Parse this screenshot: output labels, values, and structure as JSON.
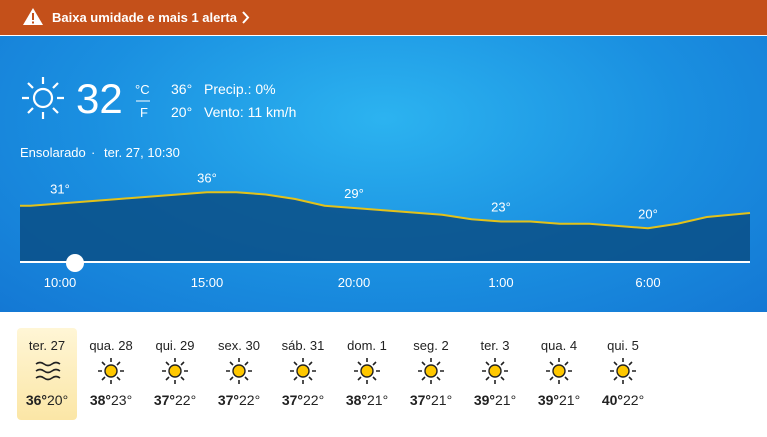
{
  "alert": {
    "text": "Baixa umidade e mais 1 alerta"
  },
  "current": {
    "temperature": "32",
    "unit_c": "°C",
    "unit_f": "F",
    "high": "36°",
    "low": "20°",
    "precip": "Precip.: 0%",
    "wind": "Vento: 11 km/h",
    "condition": "Ensolarado",
    "separator": "·",
    "datetime": "ter. 27, 10:30"
  },
  "chart_data": {
    "type": "area",
    "categories": [
      null,
      "10:00",
      null,
      null,
      null,
      null,
      "15:00",
      null,
      null,
      null,
      null,
      "20:00",
      null,
      null,
      null,
      null,
      "1:00",
      null,
      null,
      null,
      null,
      "6:00",
      null,
      null
    ],
    "values": [
      30,
      31,
      32,
      33,
      34,
      35,
      36,
      36,
      35,
      33,
      30,
      29,
      28,
      27,
      26,
      24,
      23,
      23,
      22,
      22,
      21,
      20,
      22,
      25
    ],
    "value_labels": [
      null,
      "31°",
      null,
      null,
      null,
      null,
      "36°",
      null,
      null,
      null,
      null,
      "29°",
      null,
      null,
      null,
      null,
      "23°",
      null,
      null,
      null,
      null,
      "20°",
      null,
      null
    ],
    "ylim": [
      5,
      45
    ],
    "color": "#e3c21a",
    "fill": "#0b4f86"
  },
  "daily": [
    {
      "day": "ter. 27",
      "high": "36°",
      "low": "20°"
    },
    {
      "day": "qua. 28",
      "high": "38°",
      "low": "23°"
    },
    {
      "day": "qui. 29",
      "high": "37°",
      "low": "22°"
    },
    {
      "day": "sex. 30",
      "high": "37°",
      "low": "22°"
    },
    {
      "day": "sáb. 31",
      "high": "37°",
      "low": "22°"
    },
    {
      "day": "dom. 1",
      "high": "38°",
      "low": "21°"
    },
    {
      "day": "seg. 2",
      "high": "37°",
      "low": "21°"
    },
    {
      "day": "ter. 3",
      "high": "39°",
      "low": "21°"
    },
    {
      "day": "qua. 4",
      "high": "39°",
      "low": "21°"
    },
    {
      "day": "qui. 5",
      "high": "40°",
      "low": "22°"
    }
  ]
}
